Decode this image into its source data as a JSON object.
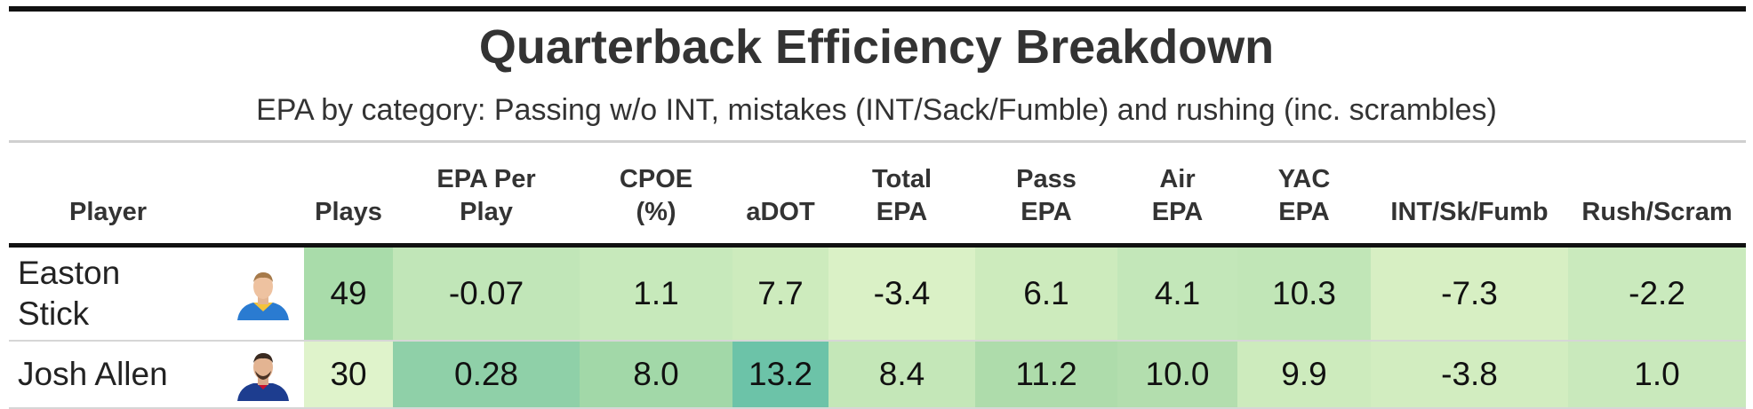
{
  "title": "Quarterback Efficiency Breakdown",
  "subtitle": "EPA by category: Passing w/o INT, mistakes (INT/Sack/Fumble) and rushing (inc. scrambles)",
  "columns": {
    "player": "Player",
    "plays": "Plays",
    "epa_per_play_1": "EPA Per",
    "epa_per_play_2": "Play",
    "cpoe_1": "CPOE",
    "cpoe_2": "(%)",
    "adot": "aDOT",
    "total_epa_1": "Total",
    "total_epa_2": "EPA",
    "pass_epa_1": "Pass",
    "pass_epa_2": "EPA",
    "air_epa_1": "Air",
    "air_epa_2": "EPA",
    "yac_epa_1": "YAC",
    "yac_epa_2": "EPA",
    "int_sk_fumb": "INT/Sk/Fumb",
    "rush_scram": "Rush/Scram"
  },
  "rows": [
    {
      "player": "Easton Stick",
      "headshot_icon": "player-headshot-chargers-icon",
      "plays": "49",
      "epa_per_play": "-0.07",
      "cpoe": "1.1",
      "adot": "7.7",
      "total_epa": "-3.4",
      "pass_epa": "6.1",
      "air_epa": "4.1",
      "yac_epa": "10.3",
      "int_sk_fumb": "-7.3",
      "rush_scram": "-2.2",
      "colors": {
        "plays": "#a9dcaa",
        "epa_per_play": "#c1e6b8",
        "cpoe": "#c7e9bb",
        "adot": "#cdebbd",
        "total_epa": "#daf1c6",
        "pass_epa": "#cdebbd",
        "air_epa": "#c3e7b9",
        "yac_epa": "#c1e6b7",
        "int_sk_fumb": "#d7efc3",
        "rush_scram": "#caeabd"
      }
    },
    {
      "player": "Josh Allen",
      "headshot_icon": "player-headshot-bills-icon",
      "plays": "30",
      "epa_per_play": "0.28",
      "cpoe": "8.0",
      "adot": "13.2",
      "total_epa": "8.4",
      "pass_epa": "11.2",
      "air_epa": "10.0",
      "yac_epa": "9.9",
      "int_sk_fumb": "-3.8",
      "rush_scram": "1.0",
      "colors": {
        "plays": "#dff3cb",
        "epa_per_play": "#8fd0a8",
        "cpoe": "#a2d8a8",
        "adot": "#6cc3a8",
        "total_epa": "#c4e7b8",
        "pass_epa": "#aedcab",
        "air_epa": "#b3deae",
        "yac_epa": "#cdebbd",
        "int_sk_fumb": "#d2edc0",
        "rush_scram": "#c9e9bc"
      }
    }
  ]
}
